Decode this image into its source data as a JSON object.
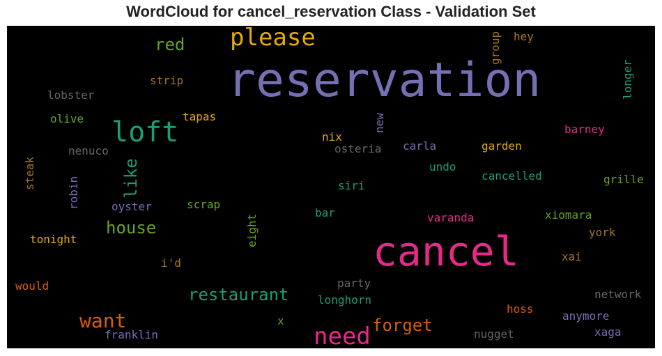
{
  "title": "WordCloud for cancel_reservation Class - Validation Set",
  "words": [
    {
      "text": "reservation",
      "color": "#7570b3"
    },
    {
      "text": "cancel",
      "color": "#e7298a"
    },
    {
      "text": "loft",
      "color": "#1b9e77"
    },
    {
      "text": "please",
      "color": "#e6ab02"
    },
    {
      "text": "need",
      "color": "#e7298a"
    },
    {
      "text": "red",
      "color": "#66a61e"
    },
    {
      "text": "want",
      "color": "#d95f02"
    },
    {
      "text": "forget",
      "color": "#d95f02"
    },
    {
      "text": "restaurant",
      "color": "#1b9e77"
    },
    {
      "text": "house",
      "color": "#66a61e"
    },
    {
      "text": "like",
      "color": "#1b9e77"
    },
    {
      "text": "hey",
      "color": "#a6761d"
    },
    {
      "text": "group",
      "color": "#a6761d"
    },
    {
      "text": "longer",
      "color": "#1b9e77"
    },
    {
      "text": "strip",
      "color": "#a6761d"
    },
    {
      "text": "lobster",
      "color": "#666666"
    },
    {
      "text": "olive",
      "color": "#66a61e"
    },
    {
      "text": "tapas",
      "color": "#e6ab02"
    },
    {
      "text": "new",
      "color": "#7570b3"
    },
    {
      "text": "barney",
      "color": "#e7298a"
    },
    {
      "text": "nix",
      "color": "#e6ab02"
    },
    {
      "text": "nenuco",
      "color": "#666666"
    },
    {
      "text": "osteria",
      "color": "#666666"
    },
    {
      "text": "carla",
      "color": "#7570b3"
    },
    {
      "text": "garden",
      "color": "#e6ab02"
    },
    {
      "text": "undo",
      "color": "#1b9e77"
    },
    {
      "text": "cancelled",
      "color": "#1b9e77"
    },
    {
      "text": "steak",
      "color": "#a6761d"
    },
    {
      "text": "robin",
      "color": "#7570b3"
    },
    {
      "text": "siri",
      "color": "#1b9e77"
    },
    {
      "text": "grille",
      "color": "#66a61e"
    },
    {
      "text": "oyster",
      "color": "#7570b3"
    },
    {
      "text": "scrap",
      "color": "#66a61e"
    },
    {
      "text": "eight",
      "color": "#66a61e"
    },
    {
      "text": "bar",
      "color": "#1b9e77"
    },
    {
      "text": "xiomara",
      "color": "#66a61e"
    },
    {
      "text": "varanda",
      "color": "#e7298a"
    },
    {
      "text": "york",
      "color": "#a6761d"
    },
    {
      "text": "tonight",
      "color": "#e6ab02"
    },
    {
      "text": "i'd",
      "color": "#a6761d"
    },
    {
      "text": "xai",
      "color": "#a6761d"
    },
    {
      "text": "would",
      "color": "#d95f02"
    },
    {
      "text": "party",
      "color": "#666666"
    },
    {
      "text": "network",
      "color": "#666666"
    },
    {
      "text": "longhorn",
      "color": "#1b9e77"
    },
    {
      "text": "hoss",
      "color": "#d95f02"
    },
    {
      "text": "x",
      "color": "#66a61e"
    },
    {
      "text": "anymore",
      "color": "#7570b3"
    },
    {
      "text": "franklin",
      "color": "#7570b3"
    },
    {
      "text": "nugget",
      "color": "#666666"
    },
    {
      "text": "xaga",
      "color": "#7570b3"
    }
  ]
}
